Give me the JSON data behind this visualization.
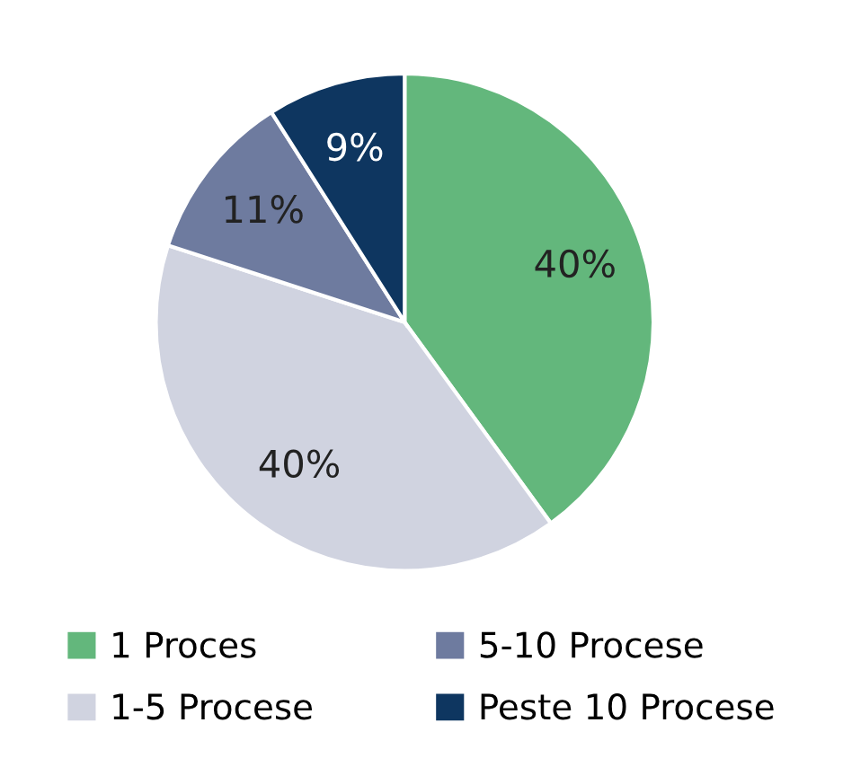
{
  "chart_data": {
    "type": "pie",
    "categories": [
      "1 Proces",
      "1-5 Procese",
      "5-10 Procese",
      "Peste 10 Procese"
    ],
    "values": [
      40,
      40,
      11,
      9
    ],
    "value_labels": [
      "40%",
      "40%",
      "11%",
      "9%"
    ],
    "colors": [
      "#63b77c",
      "#d0d3e0",
      "#6e7b9f",
      "#0e3660"
    ],
    "legend": "bottom"
  }
}
